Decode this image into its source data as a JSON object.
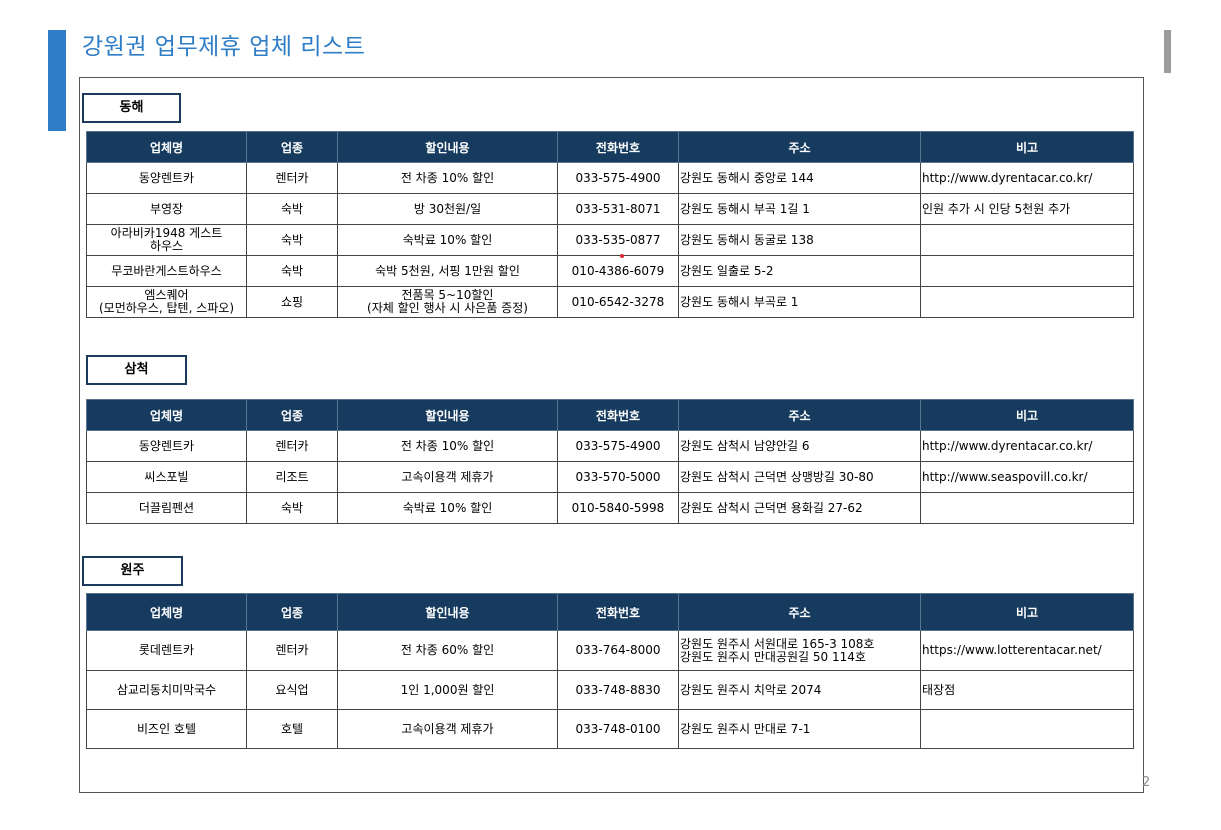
{
  "title": "강원권 업무제휴 업체 리스트",
  "page_number": "2",
  "columns": [
    "업체명",
    "업종",
    "할인내용",
    "전화번호",
    "주소",
    "비고"
  ],
  "sections": [
    {
      "region": "동해",
      "rows": [
        {
          "name": [
            "동양렌트카"
          ],
          "type": "렌터카",
          "discount": [
            "전 차종 10% 할인"
          ],
          "phone": "033-575-4900",
          "address": [
            "강원도 동해시 중앙로 144"
          ],
          "note": "http://www.dyrentacar.co.kr/"
        },
        {
          "name": [
            "부영장"
          ],
          "type": "숙박",
          "discount": [
            "방 30천원/일"
          ],
          "phone": "033-531-8071",
          "address": [
            "강원도 동해시 부곡 1길 1"
          ],
          "note": "인원 추가 시 인당 5천원 추가"
        },
        {
          "name": [
            "아라비카1948 게스트",
            "하우스"
          ],
          "type": "숙박",
          "discount": [
            "숙박료 10% 할인"
          ],
          "phone": "033-535-0877",
          "address": [
            "강원도 동해시 동굴로 138"
          ],
          "note": ""
        },
        {
          "name": [
            "무코바란게스트하우스"
          ],
          "type": "숙박",
          "discount": [
            "숙박 5천원, 서핑 1만원 할인"
          ],
          "phone": "010-4386-6079",
          "address": [
            "강원도 일출로 5-2"
          ],
          "note": ""
        },
        {
          "name": [
            "엠스퀘어",
            "(모먼하우스, 탑텐, 스파오)"
          ],
          "type": "쇼핑",
          "discount": [
            "전품목 5~10할인",
            "(자체 할인 행사 시 사은품 증정)"
          ],
          "phone": "010-6542-3278",
          "address": [
            "강원도 동해시 부곡로 1"
          ],
          "note": ""
        }
      ]
    },
    {
      "region": "삼척",
      "rows": [
        {
          "name": [
            "동양렌트카"
          ],
          "type": "렌터카",
          "discount": [
            "전 차종 10% 할인"
          ],
          "phone": "033-575-4900",
          "address": [
            "강원도 삼척시 남양안길 6"
          ],
          "note": "http://www.dyrentacar.co.kr/"
        },
        {
          "name": [
            "씨스포빌"
          ],
          "type": "리조트",
          "discount": [
            "고속이용객 제휴가"
          ],
          "phone": "033-570-5000",
          "address": [
            "강원도 삼척시 근덕면 상맹방길 30-80"
          ],
          "note": "http://www.seaspovill.co.kr/"
        },
        {
          "name": [
            "더끌림펜션"
          ],
          "type": "숙박",
          "discount": [
            "숙박료 10% 할인"
          ],
          "phone": "010-5840-5998",
          "address": [
            "강원도 삼척시 근덕면 용화길 27-62"
          ],
          "note": ""
        }
      ]
    },
    {
      "region": "원주",
      "rows": [
        {
          "name": [
            "롯데렌트카"
          ],
          "type": "렌터카",
          "discount": [
            "전 차종 60% 할인"
          ],
          "phone": "033-764-8000",
          "address": [
            "강원도 원주시 서원대로 165-3 108호",
            "강원도 원주시 만대공원길 50 114호"
          ],
          "note": "https://www.lotterentacar.net/"
        },
        {
          "name": [
            "삼교리동치미막국수"
          ],
          "type": "요식업",
          "discount": [
            "1인 1,000원 할인"
          ],
          "phone": "033-748-8830",
          "address": [
            "강원도 원주시 치악로 2074"
          ],
          "note": "태장점"
        },
        {
          "name": [
            "비즈인 호텔"
          ],
          "type": "호텔",
          "discount": [
            "고속이용객 제휴가"
          ],
          "phone": "033-748-0100",
          "address": [
            "강원도 원주시 만대로 7-1"
          ],
          "note": ""
        }
      ]
    }
  ]
}
